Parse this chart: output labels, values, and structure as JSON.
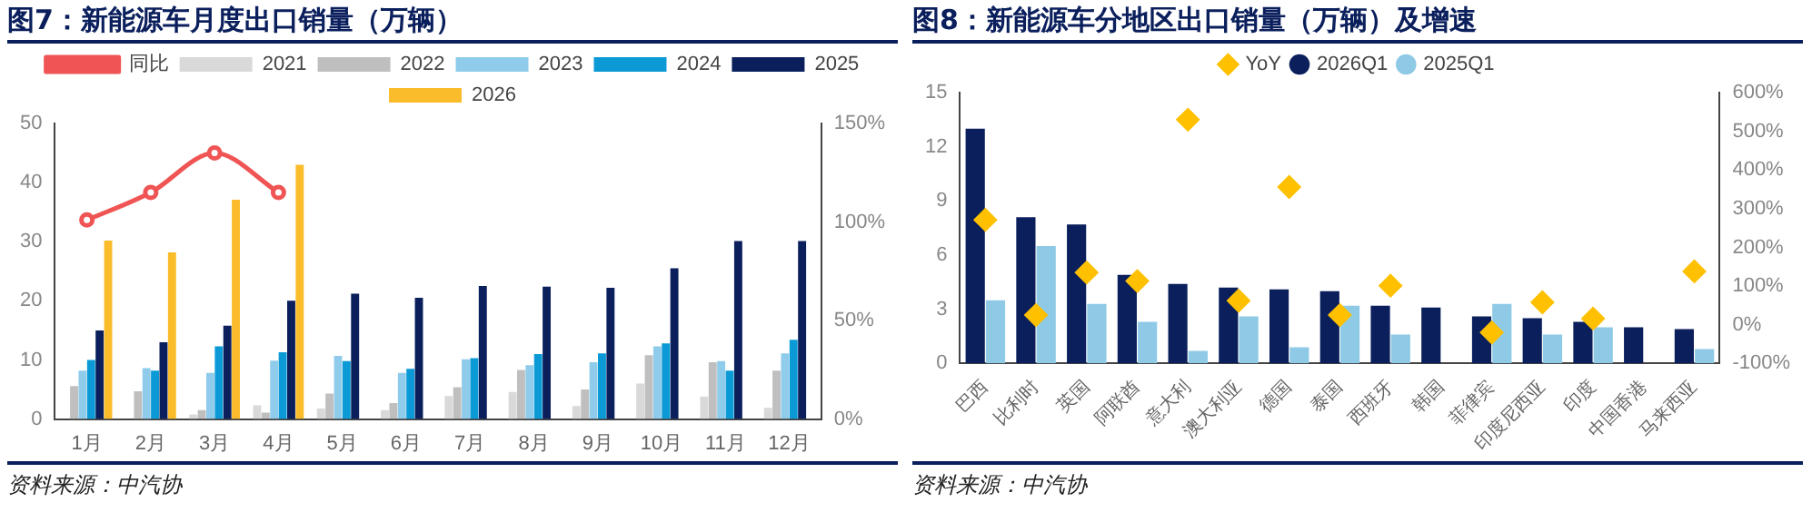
{
  "chart_data": [
    {
      "type": "bar",
      "title": "图7：新能源车月度出口销量（万辆）",
      "categories": [
        "1月",
        "2月",
        "3月",
        "4月",
        "5月",
        "6月",
        "7月",
        "8月",
        "9月",
        "10月",
        "11月",
        "12月"
      ],
      "series": [
        {
          "name": "2021",
          "color": "#d9d9d9",
          "values": [
            null,
            null,
            0.8,
            2.3,
            1.8,
            1.5,
            3.9,
            4.6,
            2.2,
            6.0,
            3.8,
            1.9
          ]
        },
        {
          "name": "2022",
          "color": "#bfbfbf",
          "values": [
            5.6,
            4.7,
            1.5,
            1.1,
            4.3,
            2.7,
            5.4,
            8.3,
            5.0,
            10.8,
            9.6,
            8.2
          ]
        },
        {
          "name": "2023",
          "color": "#8fcbea",
          "values": [
            8.2,
            8.6,
            7.8,
            9.9,
            10.7,
            7.8,
            10.1,
            9.1,
            9.6,
            12.3,
            9.8,
            11.1
          ]
        },
        {
          "name": "2024",
          "color": "#0b9ad6",
          "values": [
            10.0,
            8.2,
            12.3,
            11.3,
            9.8,
            8.5,
            10.3,
            11.0,
            11.1,
            12.8,
            8.2,
            13.4
          ]
        },
        {
          "name": "2025",
          "color": "#0a1f5c",
          "values": [
            15.0,
            13.0,
            15.8,
            20.0,
            21.2,
            20.5,
            22.5,
            22.4,
            22.2,
            25.5,
            30.1,
            30.1
          ]
        },
        {
          "name": "2026",
          "color": "#fbbc2c",
          "values": [
            30.2,
            28.2,
            37.1,
            43.0,
            null,
            null,
            null,
            null,
            null,
            null,
            null,
            null
          ]
        },
        {
          "name": "同比",
          "type": "line",
          "axis": "y2",
          "color": "#f05454",
          "marker": "circle",
          "values": [
            101,
            115,
            135,
            115,
            null,
            null,
            null,
            null,
            null,
            null,
            null,
            null
          ]
        }
      ],
      "ylim": [
        0,
        50
      ],
      "yticks": [
        0,
        10,
        20,
        30,
        40,
        50
      ],
      "y2lim": [
        0,
        150
      ],
      "y2ticks": [
        {
          "value": 0,
          "label": "0%"
        },
        {
          "value": 50,
          "label": "50%"
        },
        {
          "value": 100,
          "label": "100%"
        },
        {
          "value": 150,
          "label": "150%"
        }
      ],
      "legend": "top",
      "annotations": [
        "资料来源：中汽协"
      ]
    },
    {
      "type": "bar",
      "title": "图8：新能源车分地区出口销量（万辆）及增速",
      "categories": [
        "巴西",
        "比利时",
        "英国",
        "阿联酋",
        "意大利",
        "澳大利亚",
        "德国",
        "泰国",
        "西班牙",
        "韩国",
        "菲律宾",
        "印度尼西亚",
        "印度",
        "中国香港",
        "马来西亚"
      ],
      "series": [
        {
          "name": "2026Q1",
          "color": "#0a1f5c",
          "values": [
            13.0,
            8.1,
            7.7,
            4.9,
            4.4,
            4.2,
            4.1,
            4.0,
            3.2,
            3.1,
            2.6,
            2.5,
            2.3,
            2.0,
            1.9
          ]
        },
        {
          "name": "2025Q1",
          "color": "#8ecae6",
          "values": [
            3.5,
            6.5,
            3.3,
            2.3,
            0.7,
            2.6,
            0.9,
            3.2,
            1.6,
            null,
            3.3,
            1.6,
            2.0,
            null,
            0.8
          ]
        },
        {
          "name": "YoY",
          "type": "scatter",
          "axis": "y2",
          "color": "#ffc000",
          "marker": "diamond",
          "x": [
            "巴西",
            "比利时",
            "英国",
            "阿联酋",
            "意大利",
            "澳大利亚",
            "德国",
            "泰国",
            "西班牙",
            "菲律宾",
            "印度尼西亚",
            "印度",
            "马来西亚"
          ],
          "values": [
            271,
            25,
            135,
            113,
            530,
            62,
            356,
            25,
            101,
            -20,
            58,
            16,
            138
          ]
        }
      ],
      "ylim": [
        0,
        15
      ],
      "yticks": [
        0,
        3,
        6,
        9,
        12,
        15
      ],
      "y2lim": [
        -100,
        600
      ],
      "y2ticks": [
        {
          "value": -100,
          "label": "-100%"
        },
        {
          "value": 0,
          "label": "0%"
        },
        {
          "value": 100,
          "label": "100%"
        },
        {
          "value": 200,
          "label": "200%"
        },
        {
          "value": 300,
          "label": "300%"
        },
        {
          "value": 400,
          "label": "400%"
        },
        {
          "value": 500,
          "label": "500%"
        },
        {
          "value": 600,
          "label": "600%"
        }
      ],
      "legend": "top",
      "annotations": [
        "资料来源：中汽协"
      ]
    }
  ]
}
